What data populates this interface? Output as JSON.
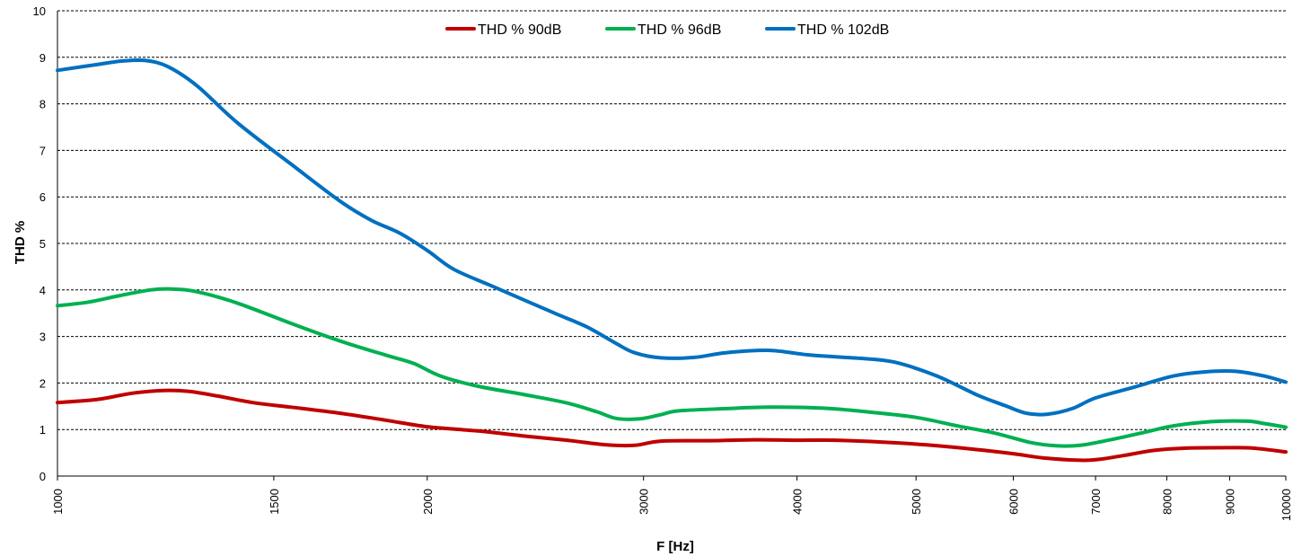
{
  "chart_data": {
    "type": "line",
    "xlabel": "F [Hz]",
    "ylabel": "THD %",
    "x_scale": "log",
    "xlim": [
      1000,
      10000
    ],
    "ylim": [
      0,
      10
    ],
    "x_ticks": [
      1000,
      1500,
      2000,
      3000,
      4000,
      5000,
      6000,
      7000,
      8000,
      9000,
      10000
    ],
    "y_ticks": [
      0,
      1,
      2,
      3,
      4,
      5,
      6,
      7,
      8,
      9,
      10
    ],
    "grid": "horizontal dashed",
    "legend_position": "top-center",
    "series": [
      {
        "name": "THD % 90dB",
        "color": "#C00000",
        "points": [
          [
            1000,
            1.58
          ],
          [
            1080,
            1.65
          ],
          [
            1150,
            1.78
          ],
          [
            1220,
            1.84
          ],
          [
            1280,
            1.82
          ],
          [
            1350,
            1.72
          ],
          [
            1450,
            1.57
          ],
          [
            1550,
            1.48
          ],
          [
            1700,
            1.35
          ],
          [
            1850,
            1.2
          ],
          [
            2000,
            1.06
          ],
          [
            2200,
            0.97
          ],
          [
            2400,
            0.86
          ],
          [
            2600,
            0.77
          ],
          [
            2800,
            0.67
          ],
          [
            2950,
            0.66
          ],
          [
            3100,
            0.75
          ],
          [
            3400,
            0.76
          ],
          [
            3700,
            0.78
          ],
          [
            4000,
            0.77
          ],
          [
            4300,
            0.77
          ],
          [
            4700,
            0.73
          ],
          [
            5100,
            0.67
          ],
          [
            5600,
            0.57
          ],
          [
            6000,
            0.48
          ],
          [
            6400,
            0.38
          ],
          [
            6900,
            0.34
          ],
          [
            7300,
            0.42
          ],
          [
            7800,
            0.55
          ],
          [
            8300,
            0.6
          ],
          [
            9000,
            0.61
          ],
          [
            9400,
            0.6
          ],
          [
            10000,
            0.52
          ]
        ]
      },
      {
        "name": "THD % 96dB",
        "color": "#00B050",
        "points": [
          [
            1000,
            3.66
          ],
          [
            1060,
            3.74
          ],
          [
            1120,
            3.87
          ],
          [
            1190,
            4.0
          ],
          [
            1240,
            4.02
          ],
          [
            1300,
            3.96
          ],
          [
            1400,
            3.72
          ],
          [
            1550,
            3.28
          ],
          [
            1700,
            2.9
          ],
          [
            1850,
            2.6
          ],
          [
            1950,
            2.42
          ],
          [
            2050,
            2.15
          ],
          [
            2200,
            1.93
          ],
          [
            2400,
            1.75
          ],
          [
            2600,
            1.57
          ],
          [
            2750,
            1.38
          ],
          [
            2850,
            1.24
          ],
          [
            2980,
            1.23
          ],
          [
            3100,
            1.32
          ],
          [
            3200,
            1.4
          ],
          [
            3500,
            1.45
          ],
          [
            3800,
            1.48
          ],
          [
            4200,
            1.46
          ],
          [
            4600,
            1.37
          ],
          [
            5000,
            1.26
          ],
          [
            5400,
            1.08
          ],
          [
            5800,
            0.92
          ],
          [
            6200,
            0.72
          ],
          [
            6500,
            0.65
          ],
          [
            6800,
            0.66
          ],
          [
            7200,
            0.78
          ],
          [
            7700,
            0.95
          ],
          [
            8100,
            1.08
          ],
          [
            8700,
            1.17
          ],
          [
            9300,
            1.18
          ],
          [
            9600,
            1.13
          ],
          [
            10000,
            1.05
          ]
        ]
      },
      {
        "name": "THD % 102dB",
        "color": "#0070C0",
        "points": [
          [
            1000,
            8.72
          ],
          [
            1080,
            8.85
          ],
          [
            1130,
            8.92
          ],
          [
            1180,
            8.93
          ],
          [
            1230,
            8.8
          ],
          [
            1300,
            8.38
          ],
          [
            1400,
            7.6
          ],
          [
            1550,
            6.7
          ],
          [
            1700,
            5.9
          ],
          [
            1800,
            5.5
          ],
          [
            1900,
            5.22
          ],
          [
            2000,
            4.85
          ],
          [
            2100,
            4.45
          ],
          [
            2250,
            4.1
          ],
          [
            2400,
            3.78
          ],
          [
            2550,
            3.48
          ],
          [
            2700,
            3.2
          ],
          [
            2850,
            2.85
          ],
          [
            2950,
            2.65
          ],
          [
            3100,
            2.54
          ],
          [
            3300,
            2.55
          ],
          [
            3500,
            2.65
          ],
          [
            3800,
            2.7
          ],
          [
            4100,
            2.6
          ],
          [
            4500,
            2.53
          ],
          [
            4800,
            2.45
          ],
          [
            5200,
            2.15
          ],
          [
            5600,
            1.75
          ],
          [
            5900,
            1.52
          ],
          [
            6150,
            1.35
          ],
          [
            6400,
            1.33
          ],
          [
            6700,
            1.45
          ],
          [
            7000,
            1.68
          ],
          [
            7500,
            1.9
          ],
          [
            8100,
            2.15
          ],
          [
            8600,
            2.24
          ],
          [
            9100,
            2.25
          ],
          [
            9600,
            2.15
          ],
          [
            10000,
            2.02
          ]
        ]
      }
    ]
  }
}
